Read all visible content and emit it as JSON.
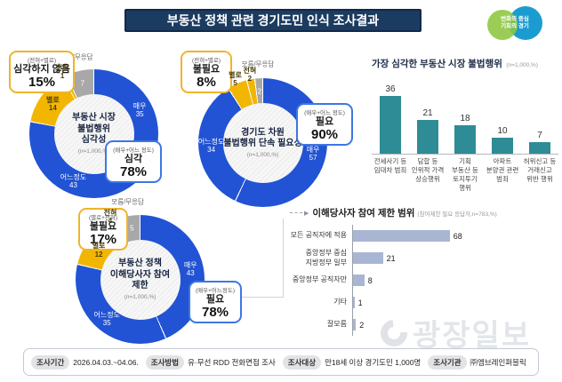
{
  "header": {
    "title": "부동산 정책 관련 경기도민 인식 조사결과",
    "logo_line1": "변화의 중심",
    "logo_line2": "기회의 경기"
  },
  "icons": {
    "connector_arrow": "▶"
  },
  "colors": {
    "blue": "#2153d4",
    "yellow": "#f3b600",
    "gray": "#a8a8a8",
    "teal": "#2e8c96",
    "hbar": "#a9b6d3",
    "navy": "#1c3b60"
  },
  "chart_data": [
    {
      "id": "donut-market-illegality-seriousness",
      "type": "donut",
      "title": "부동산 시장\n불법행위\n심각성",
      "subtitle": "(n=1,000,%)",
      "segments": [
        {
          "label": "매우",
          "value": 35,
          "color": "blue"
        },
        {
          "label": "어느정도",
          "value": 43,
          "color": "blue"
        },
        {
          "label": "별로",
          "value": 14,
          "color": "yellow"
        },
        {
          "label": "전혀",
          "value": 1,
          "color": "yellow"
        },
        {
          "label": "모름/무응답",
          "value": 7,
          "color": "gray"
        }
      ],
      "callout_negative": {
        "caption": "(전혀+별로)",
        "label": "심각하지 않음",
        "value": "15%"
      },
      "callout_positive": {
        "caption": "(매우+어느 정도)",
        "label": "심각",
        "value": "78%"
      }
    },
    {
      "id": "donut-gyeonggi-crackdown-necessity",
      "type": "donut",
      "title": "경기도 차원\n불법행위 단속 필요성",
      "subtitle": "(n=1,000,%)",
      "segments": [
        {
          "label": "매우",
          "value": 57,
          "color": "blue"
        },
        {
          "label": "어느정도",
          "value": 34,
          "color": "blue"
        },
        {
          "label": "별로",
          "value": 5,
          "color": "yellow"
        },
        {
          "label": "전혀",
          "value": 2,
          "color": "yellow"
        },
        {
          "label": "모름/무응답",
          "value": 2,
          "color": "gray"
        }
      ],
      "callout_negative": {
        "caption": "(전혀+별로)",
        "label": "불필요",
        "value": "8%"
      },
      "callout_positive": {
        "caption": "(매우+어느 정도)",
        "label": "필요",
        "value": "90%"
      }
    },
    {
      "id": "donut-stakeholder-participation-limit",
      "type": "donut",
      "title": "부동산 정책\n이해당사자 참여\n제한",
      "subtitle": "(n=1,000,%)",
      "segments": [
        {
          "label": "매우",
          "value": 43,
          "color": "blue"
        },
        {
          "label": "어느정도",
          "value": 35,
          "color": "blue"
        },
        {
          "label": "별로",
          "value": 12,
          "color": "yellow"
        },
        {
          "label": "전혀",
          "value": 4,
          "color": "yellow"
        },
        {
          "label": "모름/무응답",
          "value": 5,
          "color": "gray"
        }
      ],
      "callout_negative": {
        "caption": "(별로+전혀)",
        "label": "불필요",
        "value": "17%"
      },
      "callout_positive": {
        "caption": "(매우+어느정도)",
        "label": "필요",
        "value": "78%"
      }
    },
    {
      "id": "bar-most-serious-illegal-acts",
      "type": "bar",
      "title": "가장 심각한 부동산 시장 불법행위",
      "subtitle": "(n=1,000,%)",
      "categories": [
        "전세사기 등\n임대차 범죄",
        "담합 등\n인위적 가격\n상승행위",
        "기획\n부동산 등\n토지투기\n행위",
        "아파트\n분양권 관련\n범죄",
        "허위신고 등\n거래신고\n위반 행위"
      ],
      "values": [
        36,
        21,
        18,
        10,
        7
      ],
      "ylim": [
        0,
        40
      ]
    },
    {
      "id": "hbar-participation-limit-scope",
      "type": "hbar",
      "title": "이해당사자 참여 제한 범위",
      "subtitle": "(참여제한 필요 응답자,n=783,%)",
      "categories": [
        "모든 공직자에 적용",
        "중앙정부 중심\n지방정부 일부",
        "중앙정부 공직자만",
        "기타",
        "잘모름"
      ],
      "values": [
        68,
        21,
        8,
        1,
        2
      ],
      "xlim": [
        0,
        80
      ]
    }
  ],
  "footer": {
    "items": [
      {
        "label": "조사기간",
        "value": "2026.04.03.~04.06."
      },
      {
        "label": "조사방법",
        "value": "유·무선 RDD 전화면접 조사"
      },
      {
        "label": "조사대상",
        "value": "만18세 이상 경기도민 1,000명"
      },
      {
        "label": "조사기관",
        "value": "㈜엠브레인퍼블릭"
      }
    ]
  },
  "watermark": {
    "text": "광장일보",
    "logo": "gwangjang-ilbo-logo"
  }
}
